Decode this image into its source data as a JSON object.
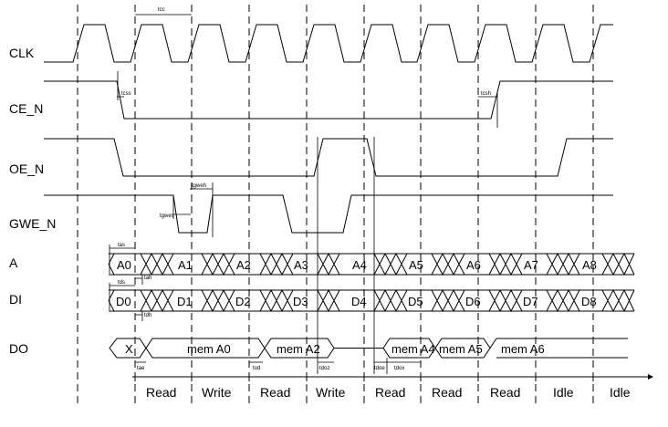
{
  "signals": [
    "CLK",
    "CE_N",
    "OE_N",
    "GWE_N",
    "A",
    "DI",
    "DO"
  ],
  "address_bus": [
    "A0",
    "A1",
    "A2",
    "A3",
    "A4",
    "A5",
    "A6",
    "A7",
    "A8"
  ],
  "data_in_bus": [
    "D0",
    "D1",
    "D2",
    "D3",
    "D4",
    "D5",
    "D6",
    "D7",
    "D8"
  ],
  "data_out_bus": [
    "X",
    "mem A0",
    "mem A2",
    "mem A4",
    "mem A5",
    "mem A6"
  ],
  "operations": [
    "Read",
    "Write",
    "Read",
    "Write",
    "Read",
    "Read",
    "Read",
    "Idle",
    "Idle"
  ],
  "timing_labels": {
    "tcc": "tcc",
    "tcss": "tcss",
    "tcsh": "tcsh",
    "tgwes": "tgwes",
    "tgweh": "tgweh",
    "tas": "tas",
    "tah": "tah",
    "tds": "tds",
    "tdh": "tdh",
    "tae": "tae",
    "tod": "tod",
    "tdoz": "tdoz",
    "tdoe": "tdoe",
    "tdox": "tdox"
  }
}
